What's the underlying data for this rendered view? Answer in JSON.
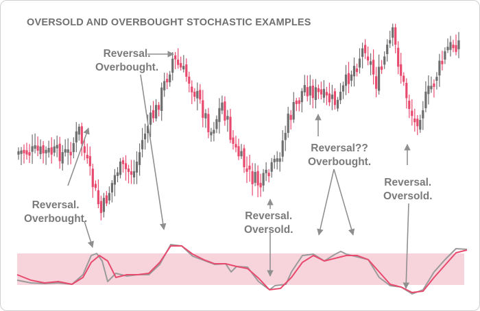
{
  "chart_data": {
    "type": "candlestick",
    "title": "OVERSOLD AND OVERBOUGHT STOCHASTIC EXAMPLES",
    "colors": {
      "bull": "#6e6e6e",
      "bear": "#e84a6e",
      "stoch_k": "#9a9a9a",
      "stoch_d": "#e84a6e",
      "band": "#f7d3dc",
      "arrow": "#8f8f8f",
      "text": "#7a7a7a"
    },
    "annotations": [
      {
        "id": "reversal-overbought-1",
        "lines": [
          "Reversal.",
          "Overbought."
        ]
      },
      {
        "id": "reversal-overbought-2",
        "lines": [
          "Reversal.",
          "Overbought."
        ]
      },
      {
        "id": "reversal-oversold-1",
        "lines": [
          "Reversal.",
          "Oversold."
        ]
      },
      {
        "id": "reversal-overbought-3",
        "lines": [
          "Reversal??",
          "Overbought."
        ]
      },
      {
        "id": "reversal-oversold-2",
        "lines": [
          "Reversal.",
          "Oversold."
        ]
      }
    ],
    "price_anchors": [
      [
        0,
        220
      ],
      [
        12,
        222
      ],
      [
        18,
        223
      ],
      [
        22,
        190
      ],
      [
        25,
        240
      ],
      [
        30,
        310
      ],
      [
        36,
        245
      ],
      [
        42,
        250
      ],
      [
        46,
        190
      ],
      [
        50,
        160
      ],
      [
        56,
        85
      ],
      [
        62,
        115
      ],
      [
        66,
        150
      ],
      [
        70,
        190
      ],
      [
        74,
        150
      ],
      [
        78,
        210
      ],
      [
        84,
        255
      ],
      [
        88,
        270
      ],
      [
        94,
        235
      ],
      [
        98,
        175
      ],
      [
        104,
        125
      ],
      [
        110,
        140
      ],
      [
        116,
        150
      ],
      [
        120,
        110
      ],
      [
        126,
        65
      ],
      [
        130,
        120
      ],
      [
        136,
        50
      ],
      [
        140,
        125
      ],
      [
        144,
        180
      ],
      [
        150,
        125
      ],
      [
        156,
        70
      ],
      [
        160,
        60
      ]
    ],
    "stochastic": {
      "k": [
        [
          0,
          408
        ],
        [
          5,
          412
        ],
        [
          10,
          413
        ],
        [
          15,
          412
        ],
        [
          20,
          414
        ],
        [
          24,
          400
        ],
        [
          27,
          372
        ],
        [
          29,
          369
        ],
        [
          31,
          380
        ],
        [
          33,
          410
        ],
        [
          36,
          398
        ],
        [
          40,
          402
        ],
        [
          44,
          400
        ],
        [
          48,
          400
        ],
        [
          52,
          385
        ],
        [
          56,
          356
        ],
        [
          60,
          358
        ],
        [
          64,
          373
        ],
        [
          68,
          379
        ],
        [
          72,
          385
        ],
        [
          76,
          384
        ],
        [
          78,
          396
        ],
        [
          80,
          388
        ],
        [
          84,
          389
        ],
        [
          88,
          410
        ],
        [
          92,
          422
        ],
        [
          94,
          416
        ],
        [
          98,
          414
        ],
        [
          100,
          396
        ],
        [
          104,
          372
        ],
        [
          108,
          370
        ],
        [
          112,
          380
        ],
        [
          116,
          370
        ],
        [
          118,
          366
        ],
        [
          120,
          370
        ],
        [
          124,
          374
        ],
        [
          128,
          378
        ],
        [
          132,
          404
        ],
        [
          136,
          416
        ],
        [
          140,
          418
        ],
        [
          144,
          428
        ],
        [
          148,
          422
        ],
        [
          152,
          396
        ],
        [
          156,
          378
        ],
        [
          160,
          362
        ],
        [
          164,
          363
        ]
      ],
      "d": [
        [
          0,
          400
        ],
        [
          5,
          408
        ],
        [
          10,
          412
        ],
        [
          15,
          410
        ],
        [
          20,
          414
        ],
        [
          24,
          404
        ],
        [
          27,
          382
        ],
        [
          30,
          372
        ],
        [
          33,
          380
        ],
        [
          36,
          404
        ],
        [
          40,
          400
        ],
        [
          44,
          400
        ],
        [
          48,
          398
        ],
        [
          52,
          382
        ],
        [
          56,
          358
        ],
        [
          60,
          358
        ],
        [
          64,
          370
        ],
        [
          68,
          378
        ],
        [
          72,
          384
        ],
        [
          76,
          384
        ],
        [
          80,
          388
        ],
        [
          84,
          391
        ],
        [
          88,
          405
        ],
        [
          92,
          422
        ],
        [
          96,
          420
        ],
        [
          100,
          404
        ],
        [
          104,
          382
        ],
        [
          108,
          372
        ],
        [
          112,
          380
        ],
        [
          116,
          376
        ],
        [
          120,
          372
        ],
        [
          124,
          372
        ],
        [
          128,
          378
        ],
        [
          132,
          396
        ],
        [
          136,
          414
        ],
        [
          140,
          418
        ],
        [
          144,
          426
        ],
        [
          148,
          424
        ],
        [
          152,
          404
        ],
        [
          156,
          386
        ],
        [
          160,
          368
        ],
        [
          164,
          364
        ]
      ]
    },
    "overbought_oversold_band": {
      "visible": true
    },
    "grid": false,
    "legend": "none"
  }
}
